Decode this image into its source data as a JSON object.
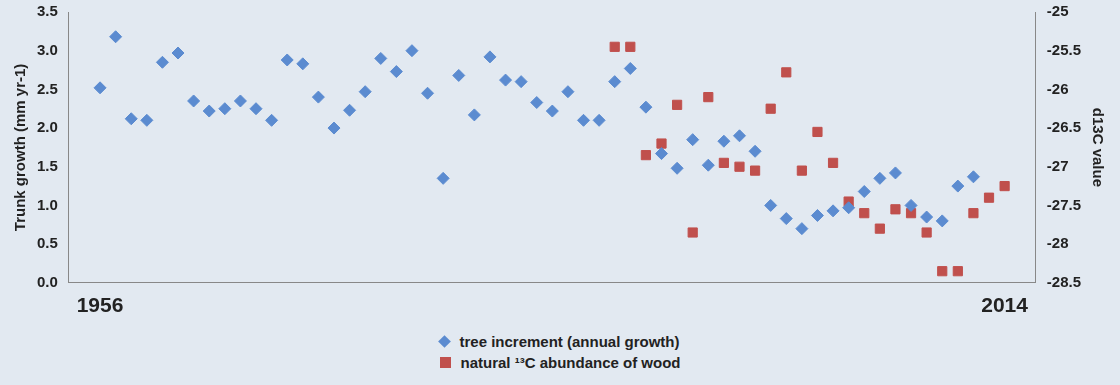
{
  "chart_data": {
    "type": "scatter",
    "y_label": "Trunk growth (mm yr-1)",
    "y2_label": "d13C value",
    "xlim": [
      1954,
      2016
    ],
    "xticks": [
      1956,
      2014
    ],
    "ylim": [
      0,
      3.5
    ],
    "yticks": [
      {
        "value": 0,
        "label": "0.0"
      },
      0.5,
      {
        "value": 1,
        "label": "1.0"
      },
      1.5,
      {
        "value": 2,
        "label": "2.0"
      },
      2.5,
      {
        "value": 3,
        "label": "3.0"
      },
      3.5
    ],
    "y2lim": [
      -28.5,
      -25
    ],
    "y2ticks": [
      -28.5,
      -28,
      -27.5,
      -27,
      -26.5,
      -26,
      -25.5,
      -25
    ],
    "grid": false,
    "legend": "bottom",
    "series": [
      {
        "name": "tree increment (annual growth)",
        "color": "#5b8bd0",
        "marker": "diamond",
        "axis": "y",
        "x": [
          1956,
          1957,
          1958,
          1959,
          1960,
          1961,
          1962,
          1963,
          1964,
          1965,
          1966,
          1967,
          1968,
          1969,
          1970,
          1971,
          1972,
          1973,
          1974,
          1975,
          1976,
          1977,
          1978,
          1979,
          1980,
          1981,
          1982,
          1983,
          1984,
          1985,
          1986,
          1987,
          1988,
          1989,
          1990,
          1991,
          1992,
          1993,
          1994,
          1995,
          1996,
          1997,
          1998,
          1999,
          2000,
          2001,
          2002,
          2003,
          2004,
          2005,
          2006,
          2007,
          2008,
          2009,
          2010,
          2011,
          2012
        ],
        "values": [
          2.52,
          3.18,
          2.12,
          2.1,
          2.85,
          2.97,
          2.35,
          2.22,
          2.25,
          2.35,
          2.25,
          2.1,
          2.88,
          2.83,
          2.4,
          2.0,
          2.23,
          2.47,
          2.9,
          2.73,
          3.0,
          2.45,
          1.35,
          2.68,
          2.17,
          2.92,
          2.62,
          2.6,
          2.33,
          2.22,
          2.47,
          2.1,
          2.1,
          2.6,
          2.77,
          2.27,
          1.67,
          1.48,
          1.85,
          1.52,
          1.83,
          1.9,
          1.7,
          1.0,
          0.83,
          0.7,
          0.87,
          0.93,
          0.97,
          1.18,
          1.35,
          1.42,
          1.0,
          0.85,
          0.8,
          1.25,
          1.37
        ]
      },
      {
        "name": "natural ¹³C abundance of wood",
        "color": "#c0504d",
        "marker": "square",
        "axis": "y2",
        "x": [
          1989,
          1990,
          1991,
          1992,
          1993,
          1994,
          1995,
          1996,
          1997,
          1998,
          1999,
          2000,
          2001,
          2002,
          2003,
          2004,
          2005,
          2006,
          2007,
          2008,
          2009,
          2010,
          2011,
          2012,
          2013,
          2014
        ],
        "values": [
          -25.45,
          -25.45,
          -26.85,
          -26.7,
          -26.2,
          -27.85,
          -26.1,
          -26.95,
          -27.0,
          -27.05,
          -26.25,
          -25.78,
          -27.05,
          -26.55,
          -26.95,
          -27.45,
          -27.6,
          -27.8,
          -27.55,
          -27.6,
          -27.85,
          -28.35,
          -28.35,
          -27.6,
          -27.4,
          -27.25
        ]
      }
    ]
  }
}
